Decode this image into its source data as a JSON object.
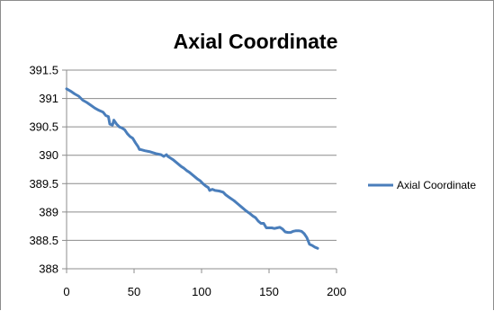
{
  "chart_data": {
    "type": "line",
    "title": "Axial Coordinate",
    "xlabel": "",
    "ylabel": "",
    "xlim": [
      0,
      200
    ],
    "ylim": [
      388,
      391.5
    ],
    "x_ticks": [
      0,
      50,
      100,
      150,
      200
    ],
    "y_ticks": [
      388,
      388.5,
      389,
      389.5,
      390,
      390.5,
      391,
      391.5
    ],
    "x_tick_labels": [
      "0",
      "50",
      "100",
      "150",
      "200"
    ],
    "y_tick_labels": [
      "388",
      "388.5",
      "389",
      "389.5",
      "390",
      "390.5",
      "391",
      "391.5"
    ],
    "grid": "horizontal",
    "legend_position": "right",
    "line_color": "#4a7ebb",
    "series": [
      {
        "name": "Axial Coordinate",
        "x": [
          0,
          3,
          6,
          9,
          12,
          15,
          18,
          21,
          24,
          27,
          29,
          31,
          32,
          34,
          35,
          37,
          39,
          41,
          43,
          45,
          47,
          49,
          51,
          53,
          54,
          55,
          58,
          62,
          66,
          70,
          72,
          74,
          75,
          77,
          79,
          81,
          83,
          85,
          87,
          89,
          91,
          93,
          95,
          97,
          99,
          101,
          103,
          105,
          106,
          108,
          110,
          113,
          116,
          118,
          121,
          124,
          127,
          130,
          133,
          136,
          138,
          140,
          142,
          144,
          146,
          148,
          150,
          152,
          154,
          156,
          158,
          160,
          162,
          164,
          166,
          168,
          170,
          172,
          174,
          176,
          178,
          180,
          182,
          184,
          186
        ],
        "y": [
          391.17,
          391.13,
          391.08,
          391.04,
          390.97,
          390.93,
          390.88,
          390.83,
          390.79,
          390.76,
          390.7,
          390.68,
          390.55,
          390.53,
          390.62,
          390.55,
          390.5,
          390.48,
          390.45,
          390.38,
          390.33,
          390.3,
          390.22,
          390.15,
          390.1,
          390.1,
          390.08,
          390.06,
          390.03,
          390.01,
          389.98,
          390.01,
          389.98,
          389.95,
          389.92,
          389.88,
          389.84,
          389.8,
          389.77,
          389.73,
          389.7,
          389.66,
          389.62,
          389.58,
          389.55,
          389.5,
          389.46,
          389.43,
          389.38,
          389.4,
          389.38,
          389.37,
          389.35,
          389.3,
          389.25,
          389.2,
          389.14,
          389.08,
          389.02,
          388.97,
          388.93,
          388.9,
          388.84,
          388.8,
          388.8,
          388.72,
          388.72,
          388.72,
          388.71,
          388.72,
          388.73,
          388.7,
          388.65,
          388.64,
          388.64,
          388.66,
          388.67,
          388.67,
          388.66,
          388.62,
          388.55,
          388.43,
          388.41,
          388.38,
          388.36
        ]
      }
    ]
  }
}
